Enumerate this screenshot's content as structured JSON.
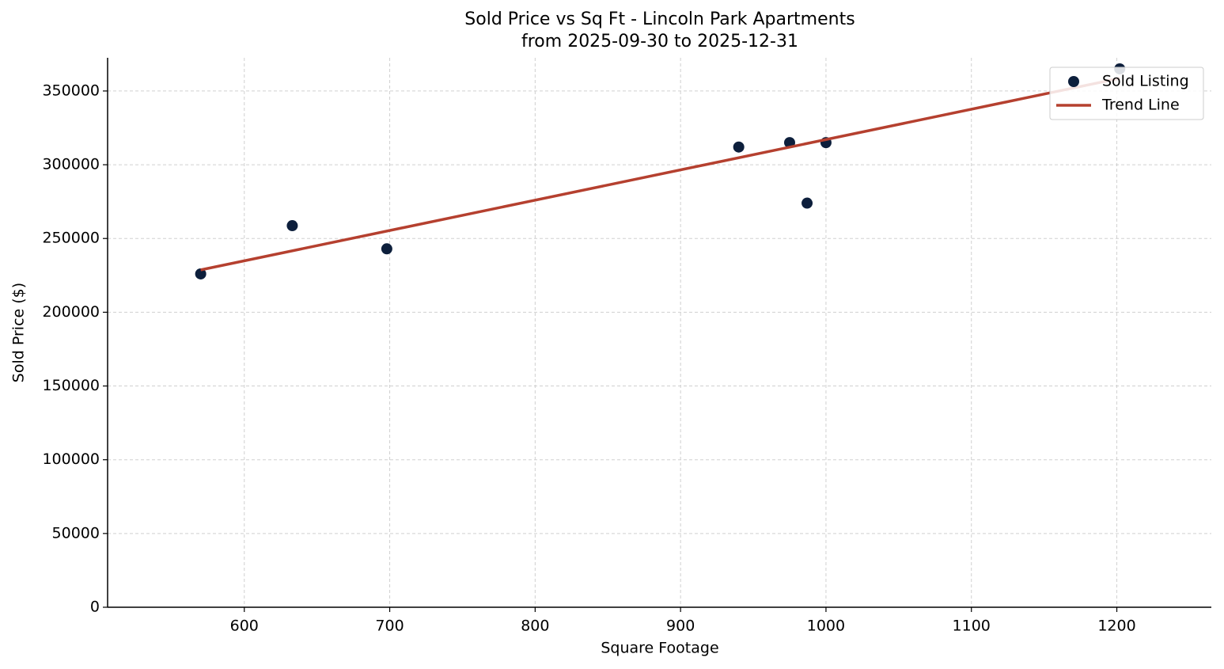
{
  "chart_data": {
    "type": "scatter",
    "title": "Sold Price vs Sq Ft - Lincoln Park Apartments",
    "subtitle": "from 2025-09-30 to 2025-12-31",
    "x_label": "Square Footage",
    "y_label": "Sold Price ($)",
    "xlim": [
      506,
      1265
    ],
    "ylim": [
      0,
      372500
    ],
    "xticks": [
      600,
      700,
      800,
      900,
      1000,
      1100,
      1200
    ],
    "yticks": [
      0,
      50000,
      100000,
      150000,
      200000,
      250000,
      300000,
      350000
    ],
    "grid": true,
    "legend": "upper right",
    "series": [
      {
        "name": "Sold Listing",
        "type": "scatter",
        "color": "#0d1f3c",
        "x": [
          570,
          633,
          698,
          940,
          975,
          987,
          1000,
          1202
        ],
        "values": [
          226000,
          258700,
          243000,
          312000,
          315000,
          274000,
          315000,
          365000
        ]
      },
      {
        "name": "Trend Line",
        "type": "line",
        "color": "#b5402f",
        "x": [
          570,
          1202
        ],
        "values": [
          228700,
          358600
        ]
      }
    ]
  }
}
